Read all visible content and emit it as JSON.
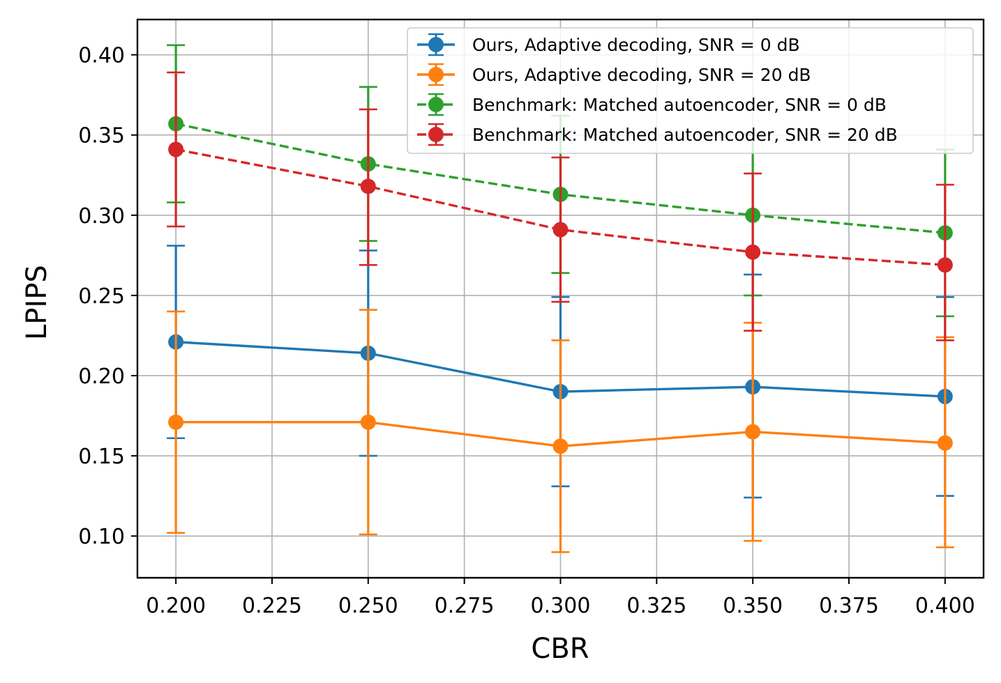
{
  "chart_data": {
    "type": "line",
    "xlabel": "CBR",
    "ylabel": "LPIPS",
    "xlim": [
      0.19,
      0.41
    ],
    "ylim": [
      0.074,
      0.422
    ],
    "xticks": [
      0.2,
      0.225,
      0.25,
      0.275,
      0.3,
      0.325,
      0.35,
      0.375,
      0.4
    ],
    "xtick_labels": [
      "0.200",
      "0.225",
      "0.250",
      "0.275",
      "0.300",
      "0.325",
      "0.350",
      "0.375",
      "0.400"
    ],
    "yticks": [
      0.1,
      0.15,
      0.2,
      0.25,
      0.3,
      0.35,
      0.4
    ],
    "ytick_labels": [
      "0.10",
      "0.15",
      "0.20",
      "0.25",
      "0.30",
      "0.35",
      "0.40"
    ],
    "grid": true,
    "legend_position": "top-right",
    "x": [
      0.2,
      0.25,
      0.3,
      0.35,
      0.4
    ],
    "series": [
      {
        "name": "Ours, Adaptive decoding, SNR = 0 dB",
        "color": "#1f77b4",
        "dashed": false,
        "values": [
          0.221,
          0.214,
          0.19,
          0.193,
          0.187
        ],
        "err_low": [
          0.161,
          0.15,
          0.131,
          0.124,
          0.125
        ],
        "err_high": [
          0.281,
          0.278,
          0.249,
          0.263,
          0.249
        ]
      },
      {
        "name": "Ours, Adaptive decoding, SNR = 20 dB",
        "color": "#ff7f0e",
        "dashed": false,
        "values": [
          0.171,
          0.171,
          0.156,
          0.165,
          0.158
        ],
        "err_low": [
          0.102,
          0.101,
          0.09,
          0.097,
          0.093
        ],
        "err_high": [
          0.24,
          0.241,
          0.222,
          0.233,
          0.224
        ]
      },
      {
        "name": "Benchmark: Matched autoencoder, SNR = 0 dB",
        "color": "#2ca02c",
        "dashed": true,
        "values": [
          0.357,
          0.332,
          0.313,
          0.3,
          0.289
        ],
        "err_low": [
          0.308,
          0.284,
          0.264,
          0.25,
          0.237
        ],
        "err_high": [
          0.406,
          0.38,
          0.362,
          0.35,
          0.341
        ]
      },
      {
        "name": "Benchmark: Matched autoencoder, SNR = 20 dB",
        "color": "#d62728",
        "dashed": true,
        "values": [
          0.341,
          0.318,
          0.291,
          0.277,
          0.269
        ],
        "err_low": [
          0.293,
          0.269,
          0.246,
          0.228,
          0.222
        ],
        "err_high": [
          0.389,
          0.366,
          0.336,
          0.326,
          0.319
        ]
      }
    ]
  }
}
